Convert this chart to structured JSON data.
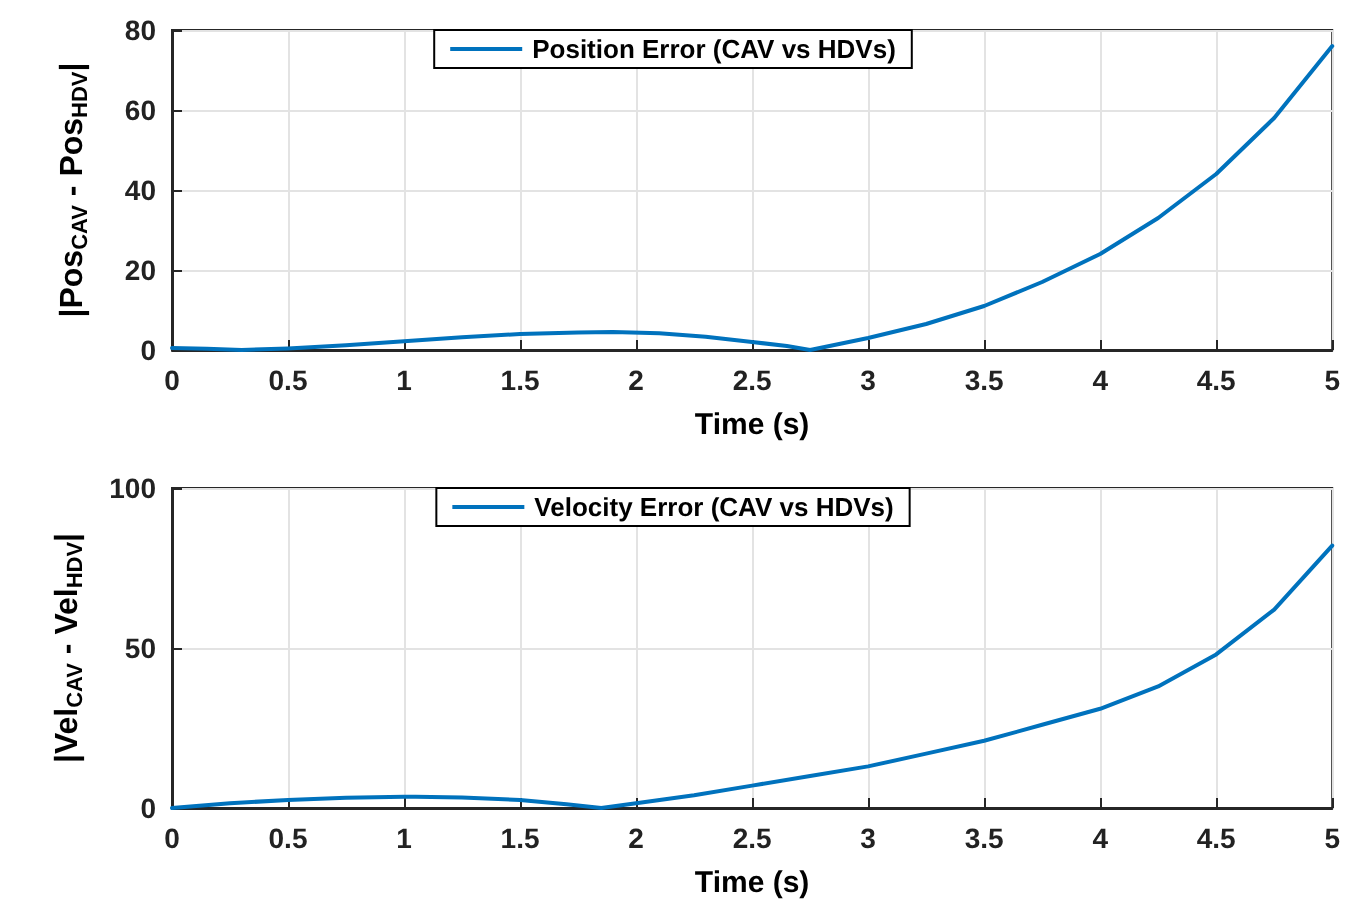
{
  "chart_data": [
    {
      "type": "line",
      "xlabel": "Time (s)",
      "ylabel": "|Pos$_{CAV}$ - Pos$_{HDV}$|",
      "x": [
        0,
        0.15,
        0.3,
        0.5,
        0.75,
        1,
        1.25,
        1.5,
        1.75,
        1.9,
        2.1,
        2.3,
        2.5,
        2.65,
        2.75,
        3,
        3.25,
        3.5,
        3.75,
        4,
        4.25,
        4.5,
        4.75,
        5
      ],
      "series": [
        {
          "name": "Position Error (CAV vs HDVs)",
          "color": "#0072bd",
          "values": [
            0.5,
            0.3,
            0,
            0.4,
            1.2,
            2.2,
            3.2,
            4,
            4.4,
            4.5,
            4.2,
            3.3,
            2,
            1,
            0,
            3,
            6.5,
            11,
            17,
            24,
            33,
            44,
            58,
            76
          ]
        }
      ],
      "xlim": [
        0,
        5
      ],
      "xticks": [
        0,
        0.5,
        1,
        1.5,
        2,
        2.5,
        3,
        3.5,
        4,
        4.5,
        5
      ],
      "ylim": [
        0,
        80
      ],
      "yticks": [
        0,
        20,
        40,
        60,
        80
      ],
      "grid": true,
      "legend": "top",
      "marker": "none",
      "line_style": "solid"
    },
    {
      "type": "line",
      "xlabel": "Time (s)",
      "ylabel": "|Vel$_{CAV}$ - Vel$_{HDV}$|",
      "x": [
        0,
        0.25,
        0.5,
        0.75,
        1,
        1.05,
        1.25,
        1.5,
        1.7,
        1.85,
        2,
        2.25,
        2.5,
        2.75,
        3,
        3.25,
        3.5,
        3.75,
        4,
        4.25,
        4.5,
        4.75,
        5
      ],
      "series": [
        {
          "name": "Velocity Error (CAV vs HDVs)",
          "color": "#0072bd",
          "values": [
            0,
            1.5,
            2.5,
            3.2,
            3.5,
            3.5,
            3.3,
            2.5,
            1.2,
            0,
            1.5,
            4,
            7,
            10,
            13,
            17,
            21,
            26,
            31,
            38,
            48,
            62,
            82
          ]
        }
      ],
      "xlim": [
        0,
        5
      ],
      "xticks": [
        0,
        0.5,
        1,
        1.5,
        2,
        2.5,
        3,
        3.5,
        4,
        4.5,
        5
      ],
      "ylim": [
        0,
        100
      ],
      "yticks": [
        0,
        50,
        100
      ],
      "grid": true,
      "legend": "top",
      "marker": "none",
      "line_style": "solid"
    }
  ]
}
